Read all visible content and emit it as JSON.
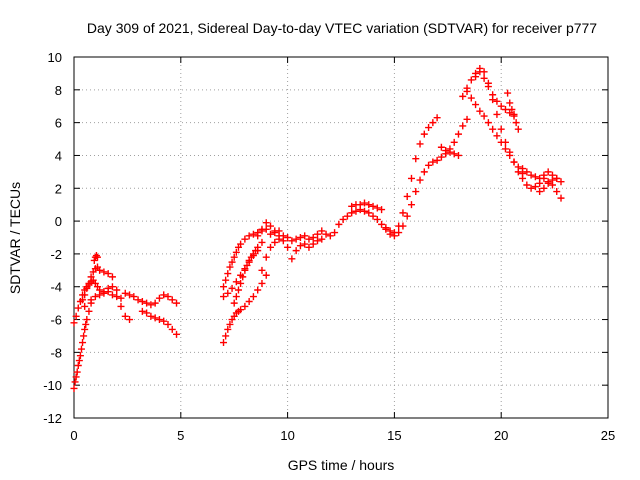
{
  "chart_data": {
    "type": "scatter",
    "title": "Day 309 of 2021, Sidereal Day-to-day VTEC variation (SDTVAR) for receiver p777",
    "xlabel": "GPS time / hours",
    "ylabel": "SDTVAR / TECUs",
    "xlim": [
      0,
      25
    ],
    "ylim": [
      -12,
      10
    ],
    "x_ticks": [
      0,
      5,
      10,
      15,
      20,
      25
    ],
    "y_ticks": [
      -12,
      -10,
      -8,
      -6,
      -4,
      -2,
      0,
      2,
      4,
      6,
      8,
      10
    ],
    "grid": true,
    "marker": "+",
    "color": "#ff0000",
    "series": [
      {
        "x": [
          0.0,
          0.1,
          0.2,
          0.3,
          0.4,
          0.5,
          0.6,
          0.7,
          0.8,
          0.9,
          1.0,
          1.1,
          1.2,
          1.4,
          1.6,
          1.8,
          2.0,
          2.2,
          2.4,
          2.6,
          2.8,
          3.0,
          3.2,
          3.4,
          3.6,
          3.8,
          4.0,
          4.2,
          4.4,
          4.6,
          4.8
        ],
        "y": [
          -6.2,
          -5.8,
          -5.3,
          -4.9,
          -4.5,
          -4.2,
          -4.0,
          -3.9,
          -3.7,
          -3.6,
          -3.8,
          -4.0,
          -4.2,
          -4.4,
          -4.3,
          -4.5,
          -4.6,
          -4.7,
          -4.4,
          -4.5,
          -4.6,
          -4.8,
          -4.9,
          -5.0,
          -5.1,
          -5.0,
          -4.7,
          -4.5,
          -4.6,
          -4.8,
          -5.0
        ]
      },
      {
        "x": [
          0.0,
          0.05,
          0.1,
          0.15,
          0.2,
          0.25,
          0.3,
          0.35,
          0.4,
          0.45,
          0.5,
          0.55,
          0.6,
          0.7,
          0.8
        ],
        "y": [
          -10.2,
          -9.8,
          -9.5,
          -9.2,
          -8.8,
          -8.5,
          -8.2,
          -7.8,
          -7.4,
          -7.0,
          -6.6,
          -6.3,
          -6.0,
          -5.5,
          -5.0
        ]
      },
      {
        "x": [
          0.4,
          0.5,
          0.6,
          0.7,
          0.8,
          0.9,
          1.0,
          1.1,
          1.2,
          1.4,
          1.6,
          1.8,
          2.0,
          2.2,
          2.4,
          2.6
        ],
        "y": [
          -4.8,
          -4.5,
          -4.1,
          -3.8,
          -3.4,
          -3.1,
          -2.9,
          -2.8,
          -3.0,
          -3.1,
          -3.2,
          -3.4,
          -4.2,
          -5.2,
          -5.8,
          -6.0
        ]
      },
      {
        "x": [
          0.5,
          0.8,
          1.0,
          1.2,
          1.4,
          1.6,
          1.8
        ],
        "y": [
          -5.2,
          -4.8,
          -4.6,
          -4.5,
          -4.3,
          -4.1,
          -4.0
        ]
      },
      {
        "x": [
          3.2,
          3.4,
          3.6,
          3.8,
          4.0,
          4.2,
          4.4,
          4.6,
          4.8
        ],
        "y": [
          -5.5,
          -5.6,
          -5.8,
          -5.9,
          -6.0,
          -6.1,
          -6.3,
          -6.6,
          -6.9
        ]
      },
      {
        "x": [
          0.95,
          1.0,
          1.05,
          1.1
        ],
        "y": [
          -2.4,
          -2.2,
          -2.1,
          -2.2
        ]
      },
      {
        "x": [
          7.0,
          7.1,
          7.2,
          7.3,
          7.4,
          7.5,
          7.6,
          7.7,
          7.8,
          8.0,
          8.2,
          8.4,
          8.6,
          8.8,
          9.0,
          9.2,
          9.4,
          9.6,
          9.8,
          10.0,
          10.2,
          10.4,
          10.6,
          10.8,
          11.0,
          11.2,
          11.4,
          11.6,
          11.8,
          12.0,
          12.2
        ],
        "y": [
          -4.0,
          -3.6,
          -3.2,
          -2.8,
          -2.5,
          -2.2,
          -1.9,
          -1.6,
          -1.4,
          -1.1,
          -0.9,
          -0.8,
          -0.7,
          -0.6,
          -0.5,
          -0.8,
          -0.7,
          -0.6,
          -0.9,
          -1.0,
          -1.2,
          -1.1,
          -1.0,
          -0.9,
          -1.1,
          -1.0,
          -0.8,
          -0.6,
          -0.8,
          -0.9,
          -0.7
        ]
      },
      {
        "x": [
          7.0,
          7.1,
          7.2,
          7.3,
          7.4,
          7.5,
          7.6,
          7.7,
          7.8,
          8.0,
          8.2,
          8.4,
          8.6,
          8.8,
          9.0
        ],
        "y": [
          -7.4,
          -7.0,
          -6.6,
          -6.3,
          -6.0,
          -5.8,
          -5.6,
          -5.5,
          -5.4,
          -5.2,
          -4.9,
          -4.6,
          -4.2,
          -3.8,
          -3.3
        ]
      },
      {
        "x": [
          7.5,
          7.6,
          7.7,
          7.8,
          7.9,
          8.0,
          8.1,
          8.2,
          8.3,
          8.4,
          8.5,
          8.6,
          8.8
        ],
        "y": [
          -5.0,
          -4.6,
          -4.2,
          -3.8,
          -3.4,
          -3.0,
          -2.7,
          -2.4,
          -2.2,
          -2.0,
          -1.8,
          -1.6,
          -1.3
        ]
      },
      {
        "x": [
          7.0,
          7.2,
          7.4,
          7.6,
          7.8,
          8.0,
          8.2,
          8.4,
          8.6
        ],
        "y": [
          -4.6,
          -4.4,
          -4.1,
          -3.7,
          -3.3,
          -2.9,
          -2.5,
          -2.1,
          -1.8
        ]
      },
      {
        "x": [
          8.8,
          9.0,
          9.2,
          9.4,
          9.6,
          9.8,
          10.0,
          10.2,
          10.4,
          10.6,
          10.8,
          11.0,
          11.2,
          11.4,
          11.6
        ],
        "y": [
          -3.0,
          -2.2,
          -1.6,
          -1.3,
          -1.1,
          -1.2,
          -1.6,
          -2.3,
          -1.8,
          -1.5,
          -1.4,
          -1.6,
          -1.4,
          -1.2,
          -1.1
        ]
      },
      {
        "x": [
          8.6,
          8.8,
          9.0,
          9.2,
          9.4,
          9.6
        ],
        "y": [
          -0.9,
          -0.5,
          -0.1,
          -0.3,
          -0.6,
          -0.9
        ]
      },
      {
        "x": [
          12.4,
          12.6,
          12.8,
          13.0,
          13.2,
          13.4,
          13.6,
          13.8,
          14.0,
          14.2,
          14.4,
          14.6,
          14.8,
          15.0,
          15.2,
          15.4,
          15.6,
          15.8,
          16.0,
          16.2,
          16.4,
          16.6,
          16.8,
          17.0,
          17.2,
          17.4,
          17.6,
          17.8,
          18.0,
          18.2,
          18.4
        ],
        "y": [
          -0.2,
          0.1,
          0.3,
          0.5,
          0.6,
          0.7,
          0.6,
          0.5,
          0.3,
          0.1,
          -0.2,
          -0.5,
          -0.8,
          -0.9,
          -0.7,
          -0.3,
          0.3,
          1.0,
          1.8,
          2.5,
          3.0,
          3.4,
          3.6,
          3.7,
          3.9,
          4.1,
          4.4,
          4.8,
          5.3,
          5.8,
          6.2
        ]
      },
      {
        "x": [
          13.0,
          13.2,
          13.4,
          13.6,
          13.8,
          14.0,
          14.2,
          14.4
        ],
        "y": [
          0.9,
          1.0,
          1.0,
          1.1,
          1.0,
          0.9,
          0.8,
          0.7
        ]
      },
      {
        "x": [
          14.6,
          14.8,
          15.0,
          15.2,
          15.4,
          15.6,
          15.8,
          16.0,
          16.2,
          16.4,
          16.6,
          16.8,
          17.0,
          17.2,
          17.4,
          17.6,
          17.8,
          18.0
        ],
        "y": [
          -0.4,
          -0.6,
          -0.7,
          -0.3,
          0.5,
          1.5,
          2.6,
          3.8,
          4.7,
          5.3,
          5.7,
          6.0,
          6.3,
          4.5,
          4.3,
          4.2,
          4.1,
          4.0
        ]
      },
      {
        "x": [
          18.2,
          18.4,
          18.6,
          18.8,
          19.0,
          19.2,
          19.4,
          19.6,
          19.8,
          20.0,
          20.2,
          20.4,
          20.6,
          20.8,
          21.0,
          21.2,
          21.4,
          21.6,
          21.8,
          22.0,
          22.2,
          22.4,
          22.6,
          22.8
        ],
        "y": [
          7.6,
          8.1,
          8.6,
          9.0,
          9.3,
          9.1,
          8.4,
          7.4,
          6.5,
          5.6,
          4.8,
          4.2,
          3.6,
          3.0,
          2.6,
          2.2,
          2.0,
          2.1,
          2.3,
          2.6,
          2.4,
          2.2,
          1.8,
          1.4
        ]
      },
      {
        "x": [
          18.4,
          18.6,
          18.8,
          19.0,
          19.2,
          19.4,
          19.6,
          19.8,
          20.0,
          20.2,
          20.4,
          20.6,
          20.8,
          21.0
        ],
        "y": [
          7.9,
          7.5,
          7.1,
          6.7,
          6.4,
          6.0,
          5.6,
          5.2,
          4.8,
          4.4,
          4.0,
          3.6,
          3.3,
          2.9
        ]
      },
      {
        "x": [
          18.8,
          19.0,
          19.2,
          19.4,
          19.6,
          19.8,
          20.0,
          20.2,
          20.4,
          20.6
        ],
        "y": [
          8.8,
          9.1,
          8.7,
          8.2,
          7.7,
          7.3,
          7.0,
          6.8,
          6.6,
          6.5
        ]
      },
      {
        "x": [
          20.3,
          20.4,
          20.5,
          20.6,
          20.7,
          20.8
        ],
        "y": [
          7.8,
          7.2,
          6.8,
          6.4,
          6.0,
          5.6
        ]
      },
      {
        "x": [
          21.0,
          21.2,
          21.4,
          21.6,
          21.8,
          22.0,
          22.2,
          22.4,
          22.6,
          22.8
        ],
        "y": [
          3.2,
          3.0,
          2.8,
          2.7,
          2.6,
          2.8,
          3.0,
          2.8,
          2.6,
          2.4
        ]
      },
      {
        "x": [
          21.8,
          22.0,
          22.2,
          22.4,
          22.6
        ],
        "y": [
          1.8,
          2.0,
          2.3,
          2.5,
          2.6
        ]
      }
    ]
  }
}
